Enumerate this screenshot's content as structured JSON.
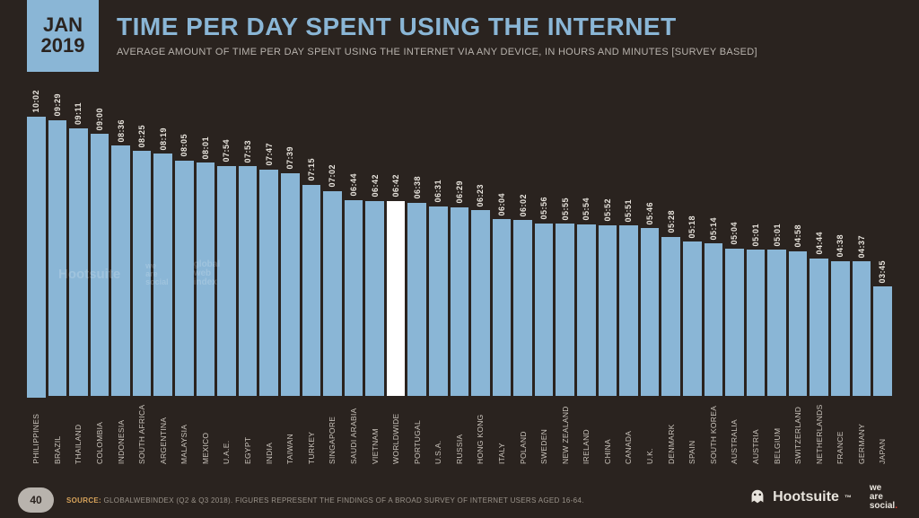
{
  "page_number": "40",
  "date_badge": {
    "month": "JAN",
    "year": "2019"
  },
  "header": {
    "title": "TIME PER DAY SPENT USING THE INTERNET",
    "subtitle": "AVERAGE AMOUNT OF TIME PER DAY SPENT USING THE INTERNET VIA ANY DEVICE, IN HOURS AND MINUTES [SURVEY BASED]"
  },
  "chart": {
    "type": "bar",
    "background_color": "#2a231f",
    "bar_color": "#8ab6d6",
    "highlight_color": "#ffffff",
    "value_text_color": "#e8e4dd",
    "label_text_color": "#c9c3bb",
    "value_fontsize": 9,
    "label_fontsize": 8.5,
    "max_minutes": 602,
    "bars": [
      {
        "label": "PHILIPPINES",
        "value_label": "10:02",
        "minutes": 602,
        "highlight": false
      },
      {
        "label": "BRAZIL",
        "value_label": "09:29",
        "minutes": 569,
        "highlight": false
      },
      {
        "label": "THAILAND",
        "value_label": "09:11",
        "minutes": 551,
        "highlight": false
      },
      {
        "label": "COLOMBIA",
        "value_label": "09:00",
        "minutes": 540,
        "highlight": false
      },
      {
        "label": "INDONESIA",
        "value_label": "08:36",
        "minutes": 516,
        "highlight": false
      },
      {
        "label": "SOUTH AFRICA",
        "value_label": "08:25",
        "minutes": 505,
        "highlight": false
      },
      {
        "label": "ARGENTINA",
        "value_label": "08:19",
        "minutes": 499,
        "highlight": false
      },
      {
        "label": "MALAYSIA",
        "value_label": "08:05",
        "minutes": 485,
        "highlight": false
      },
      {
        "label": "MEXICO",
        "value_label": "08:01",
        "minutes": 481,
        "highlight": false
      },
      {
        "label": "U.A.E.",
        "value_label": "07:54",
        "minutes": 474,
        "highlight": false
      },
      {
        "label": "EGYPT",
        "value_label": "07:53",
        "minutes": 473,
        "highlight": false
      },
      {
        "label": "INDIA",
        "value_label": "07:47",
        "minutes": 467,
        "highlight": false
      },
      {
        "label": "TAIWAN",
        "value_label": "07:39",
        "minutes": 459,
        "highlight": false
      },
      {
        "label": "TURKEY",
        "value_label": "07:15",
        "minutes": 435,
        "highlight": false
      },
      {
        "label": "SINGAPORE",
        "value_label": "07:02",
        "minutes": 422,
        "highlight": false
      },
      {
        "label": "SAUDI ARABIA",
        "value_label": "06:44",
        "minutes": 404,
        "highlight": false
      },
      {
        "label": "VIETNAM",
        "value_label": "06:42",
        "minutes": 402,
        "highlight": false
      },
      {
        "label": "WORLDWIDE",
        "value_label": "06:42",
        "minutes": 402,
        "highlight": true
      },
      {
        "label": "PORTUGAL",
        "value_label": "06:38",
        "minutes": 398,
        "highlight": false
      },
      {
        "label": "U.S.A.",
        "value_label": "06:31",
        "minutes": 391,
        "highlight": false
      },
      {
        "label": "RUSSIA",
        "value_label": "06:29",
        "minutes": 389,
        "highlight": false
      },
      {
        "label": "HONG KONG",
        "value_label": "06:23",
        "minutes": 383,
        "highlight": false
      },
      {
        "label": "ITALY",
        "value_label": "06:04",
        "minutes": 364,
        "highlight": false
      },
      {
        "label": "POLAND",
        "value_label": "06:02",
        "minutes": 362,
        "highlight": false
      },
      {
        "label": "SWEDEN",
        "value_label": "05:56",
        "minutes": 356,
        "highlight": false
      },
      {
        "label": "NEW ZEALAND",
        "value_label": "05:55",
        "minutes": 355,
        "highlight": false
      },
      {
        "label": "IRELAND",
        "value_label": "05:54",
        "minutes": 354,
        "highlight": false
      },
      {
        "label": "CHINA",
        "value_label": "05:52",
        "minutes": 352,
        "highlight": false
      },
      {
        "label": "CANADA",
        "value_label": "05:51",
        "minutes": 351,
        "highlight": false
      },
      {
        "label": "U.K.",
        "value_label": "05:46",
        "minutes": 346,
        "highlight": false
      },
      {
        "label": "DENMARK",
        "value_label": "05:28",
        "minutes": 328,
        "highlight": false
      },
      {
        "label": "SPAIN",
        "value_label": "05:18",
        "minutes": 318,
        "highlight": false
      },
      {
        "label": "SOUTH KOREA",
        "value_label": "05:14",
        "minutes": 314,
        "highlight": false
      },
      {
        "label": "AUSTRALIA",
        "value_label": "05:04",
        "minutes": 304,
        "highlight": false
      },
      {
        "label": "AUSTRIA",
        "value_label": "05:01",
        "minutes": 301,
        "highlight": false
      },
      {
        "label": "BELGIUM",
        "value_label": "05:01",
        "minutes": 301,
        "highlight": false
      },
      {
        "label": "SWITZERLAND",
        "value_label": "04:58",
        "minutes": 298,
        "highlight": false
      },
      {
        "label": "NETHERLANDS",
        "value_label": "04:44",
        "minutes": 284,
        "highlight": false
      },
      {
        "label": "FRANCE",
        "value_label": "04:38",
        "minutes": 278,
        "highlight": false
      },
      {
        "label": "GERMANY",
        "value_label": "04:37",
        "minutes": 277,
        "highlight": false
      },
      {
        "label": "JAPAN",
        "value_label": "03:45",
        "minutes": 225,
        "highlight": false
      }
    ]
  },
  "footer": {
    "source_label": "SOURCE:",
    "source_text": "GLOBALWEBINDEX (Q2 & Q3 2018). FIGURES REPRESENT THE FINDINGS OF A BROAD SURVEY OF INTERNET USERS AGED 16-64."
  },
  "brands": {
    "hootsuite": "Hootsuite",
    "tm": "™",
    "wearesocial": {
      "l1": "we",
      "l2": "are",
      "l3": "social"
    }
  },
  "watermarks": {
    "hootsuite": "Hootsuite",
    "was": {
      "l1": "we",
      "l2": "are",
      "l3": "social"
    },
    "gwi": {
      "l1": "global",
      "l2": "web",
      "l3": "index"
    }
  }
}
